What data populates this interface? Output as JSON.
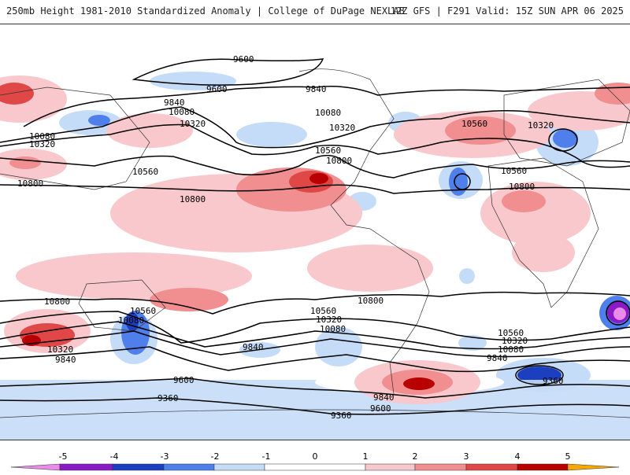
{
  "header": {
    "title": "250mb Height 1981-2010 Standardized Anomaly | College of DuPage NEXLAB",
    "valid": "12Z GFS | F291 Valid: 15Z SUN APR 06 2025"
  },
  "colors": {
    "neg5": "#e98be8",
    "neg4": "#8a1ac6",
    "neg3": "#1b3fbf",
    "neg2": "#4f7fea",
    "neg1": "#c5dcf8",
    "pos1": "#f9c8cc",
    "pos2": "#f08e90",
    "pos3": "#e04848",
    "pos4": "#b80000",
    "pos5": "#f7a800",
    "land": "#ffffff",
    "contour": "#000000"
  },
  "contour_labels": [
    "9600",
    "9600",
    "9840",
    "9840",
    "10080",
    "10080",
    "10080",
    "10320",
    "10320",
    "10320",
    "10560",
    "10560",
    "10560",
    "10560",
    "10800",
    "10800",
    "10800",
    "10800",
    "10800",
    "10560",
    "10320",
    "10080",
    "9840",
    "9600",
    "9360",
    "9360",
    "9840",
    "9600",
    "10560",
    "10320",
    "10080",
    "9840",
    "9360",
    "10560",
    "10320",
    "10080",
    "9840",
    "10800",
    "10320"
  ],
  "colorbar": {
    "ticks": [
      "-5",
      "-4",
      "-3",
      "-2",
      "-1",
      "0",
      "1",
      "2",
      "3",
      "4",
      "5"
    ]
  }
}
